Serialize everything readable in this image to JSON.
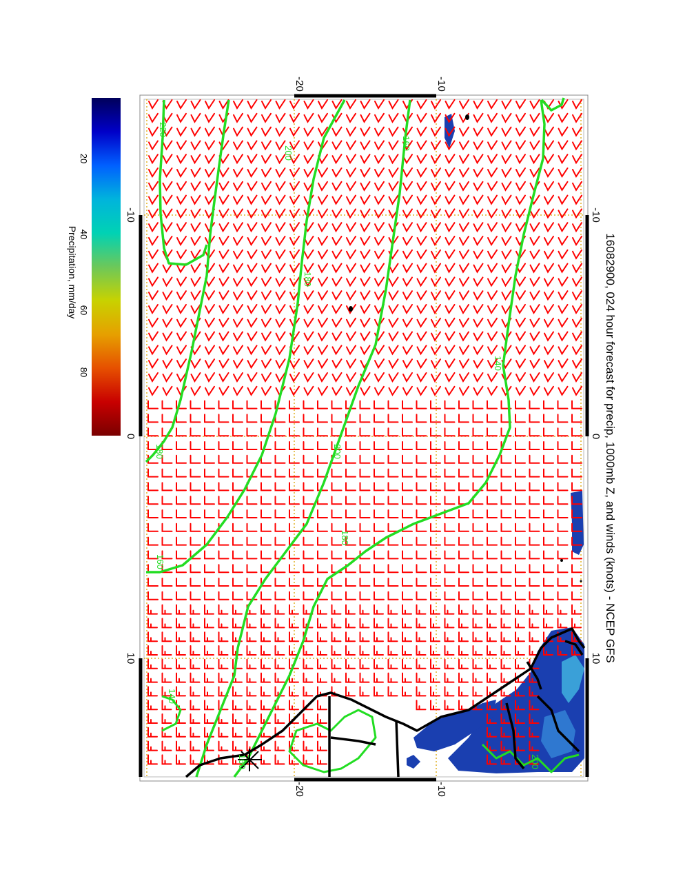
{
  "title": "16082900, 024 hour forecast for precip, 1000mb Z, and winds (knots) - NCEP GFS",
  "colorbar": {
    "label": "Precipitation, mm/day",
    "ticks": [
      "20",
      "40",
      "60",
      "80"
    ],
    "colors_top_to_bottom": [
      "#00005a",
      "#0000c8",
      "#0060ff",
      "#00b4dc",
      "#00d2b4",
      "#6cc85a",
      "#c8d200",
      "#e6a000",
      "#e65000",
      "#c80000",
      "#7a0000"
    ]
  },
  "axes": {
    "lat_ticks_top": [
      "-20",
      "-10"
    ],
    "lat_ticks_bottom": [
      "-20",
      "-10"
    ],
    "lon_ticks_left": [
      "-10",
      "0",
      "10"
    ],
    "lon_ticks_right": [
      "-10",
      "0",
      "10"
    ]
  },
  "contours": {
    "color": "#22dd22",
    "labels": [
      "220",
      "200",
      "180",
      "160",
      "140",
      "180",
      "200",
      "180",
      "160",
      "140",
      "160",
      "200"
    ]
  },
  "colors": {
    "wind_barbs": "#ff0000",
    "coastline": "#000000",
    "gridlines": "#e0b020",
    "precip": "#1a3fb0"
  }
}
